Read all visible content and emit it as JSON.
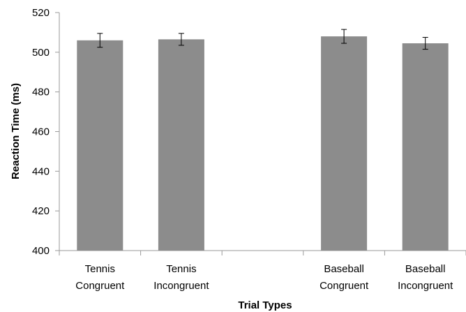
{
  "chart_data": {
    "type": "bar",
    "title": "",
    "xlabel": "Trial Types",
    "ylabel": "Reaction Time (ms)",
    "ylim": [
      400,
      520
    ],
    "yticks": [
      400,
      420,
      440,
      460,
      480,
      500,
      520
    ],
    "grid": false,
    "legend": "none",
    "categories": [
      [
        "Tennis",
        "Congruent"
      ],
      [
        "Tennis",
        "Incongruent"
      ],
      [
        "",
        ""
      ],
      [
        "Baseball",
        "Congruent"
      ],
      [
        "Baseball",
        "Incongruent"
      ]
    ],
    "values": [
      506,
      506.5,
      null,
      508,
      504.5
    ],
    "error": [
      3.5,
      3,
      null,
      3.5,
      3
    ],
    "colors": {
      "bar": "#8c8c8c",
      "axis": "#9a9a9a",
      "error": "#000000"
    }
  }
}
